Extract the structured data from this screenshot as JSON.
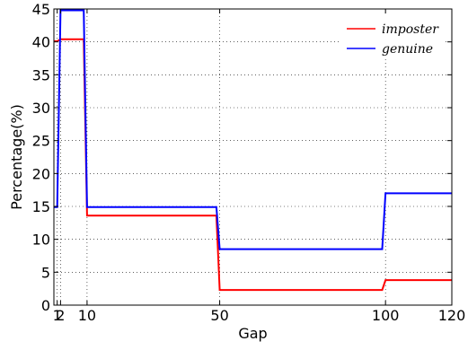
{
  "chart_data": {
    "type": "line",
    "xlabel": "Gap",
    "ylabel": "Percentage(%)",
    "xlim": [
      0,
      120
    ],
    "ylim": [
      0,
      45
    ],
    "x_ticks": [
      1,
      2,
      10,
      50,
      100,
      120
    ],
    "y_ticks": [
      0,
      5,
      10,
      15,
      20,
      25,
      30,
      35,
      40,
      45
    ],
    "grid": true,
    "grid_style": "dotted",
    "legend_position": "top-right",
    "series": [
      {
        "name": "imposter",
        "color": "#ff0000",
        "x": [
          0,
          1,
          2,
          9,
          10,
          49,
          50,
          99,
          100,
          120
        ],
        "y": [
          40.1,
          40.1,
          40.4,
          40.4,
          13.6,
          13.6,
          2.3,
          2.3,
          3.8,
          3.8
        ]
      },
      {
        "name": "genuine",
        "color": "#0000ff",
        "x": [
          0,
          1,
          2,
          9,
          10,
          49,
          50,
          99,
          100,
          120
        ],
        "y": [
          14.9,
          14.9,
          44.8,
          44.8,
          14.9,
          14.9,
          8.5,
          8.5,
          17.0,
          17.0
        ]
      }
    ]
  }
}
